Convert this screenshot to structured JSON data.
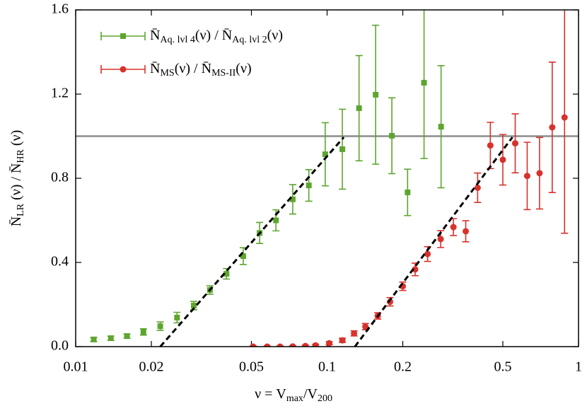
{
  "chart_data": {
    "type": "errorbar",
    "xlabel": "ν = V_{max}/V_{200}",
    "ylabel": "N̄_{LR} (ν)  /  N̄_{HR} (ν)",
    "xscale": "log",
    "xlim": [
      0.01,
      1
    ],
    "ylim": [
      0,
      1.6
    ],
    "xticks": [
      0.01,
      0.02,
      0.05,
      0.1,
      0.2,
      0.5,
      1
    ],
    "yticks": [
      {
        "value": 0,
        "label": "0.0"
      },
      0.4,
      0.8,
      1.2,
      1.6
    ],
    "hline": 1,
    "hline_color": "#8c8c8c",
    "legend": "upper left",
    "series": [
      {
        "name": "N̄_{Aq. lvl 4}(ν) / N̄_{Aq. lvl 2}(ν)",
        "color": "#5ea52f",
        "marker": "square",
        "x": [
          0.0118,
          0.0138,
          0.016,
          0.0186,
          0.0217,
          0.0253,
          0.0295,
          0.0342,
          0.0398,
          0.0464,
          0.0539,
          0.0626,
          0.073,
          0.0846,
          0.0983,
          0.115,
          0.134,
          0.156,
          0.181,
          0.209,
          0.243,
          0.284
        ],
        "values": [
          0.034,
          0.04,
          0.05,
          0.07,
          0.097,
          0.138,
          0.195,
          0.269,
          0.346,
          0.43,
          0.54,
          0.6,
          0.7,
          0.766,
          0.914,
          0.938,
          1.133,
          1.197,
          1.002,
          0.733,
          1.254,
          1.045
        ],
        "errors": [
          0.01,
          0.01,
          0.01,
          0.015,
          0.02,
          0.025,
          0.02,
          0.02,
          0.025,
          0.04,
          0.05,
          0.05,
          0.07,
          0.075,
          0.15,
          0.19,
          0.25,
          0.33,
          0.18,
          0.11,
          0.36,
          0.29
        ],
        "fit": {
          "x": [
            0.0217,
            0.1165
          ],
          "y": [
            0,
            0.995
          ]
        }
      },
      {
        "name": "N̄_{MS}(ν) / N̄_{MS-II}(ν)",
        "color": "#d7322c",
        "marker": "circle",
        "x": [
          0.0508,
          0.0578,
          0.065,
          0.073,
          0.082,
          0.09,
          0.102,
          0.115,
          0.128,
          0.142,
          0.159,
          0.178,
          0.2,
          0.224,
          0.251,
          0.283,
          0.318,
          0.356,
          0.397,
          0.446,
          0.5,
          0.56,
          0.625,
          0.7,
          0.786,
          0.88
        ],
        "values": [
          0,
          0,
          0,
          0.001,
          0.003,
          0.006,
          0.016,
          0.03,
          0.063,
          0.095,
          0.146,
          0.213,
          0.287,
          0.367,
          0.44,
          0.511,
          0.568,
          0.548,
          0.755,
          0.956,
          0.888,
          0.966,
          0.811,
          0.824,
          1.042,
          1.089
        ],
        "errors": [
          0.003,
          0.003,
          0.003,
          0.003,
          0.004,
          0.005,
          0.007,
          0.01,
          0.012,
          0.015,
          0.015,
          0.02,
          0.02,
          0.03,
          0.035,
          0.04,
          0.04,
          0.05,
          0.07,
          0.11,
          0.12,
          0.14,
          0.16,
          0.17,
          0.31,
          0.55
        ],
        "fit": {
          "x": [
            0.129,
            0.546
          ],
          "y": [
            0,
            0.995
          ]
        }
      }
    ]
  }
}
